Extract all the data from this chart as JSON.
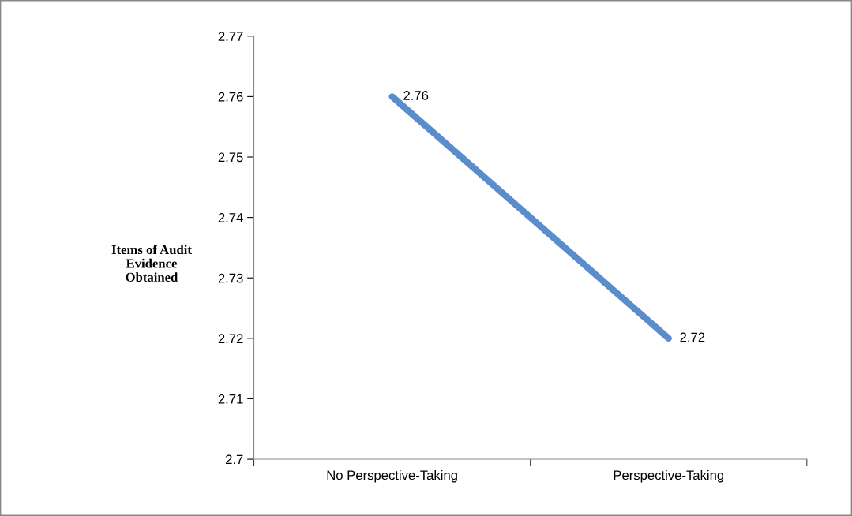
{
  "chart_data": {
    "type": "line",
    "ylabel": "Items of Audit\nEvidence\nObtained",
    "categories": [
      "No Perspective-Taking",
      "Perspective-Taking"
    ],
    "series": [
      {
        "color": "#5b8ccb",
        "values": [
          2.76,
          2.72
        ]
      }
    ],
    "ylim": [
      2.7,
      2.77
    ],
    "yticks": [
      2.7,
      2.71,
      2.72,
      2.73,
      2.74,
      2.75,
      2.76,
      2.77
    ],
    "data_labels": true,
    "grid": false,
    "legend": false,
    "marker": "none",
    "line_style": "solid"
  }
}
